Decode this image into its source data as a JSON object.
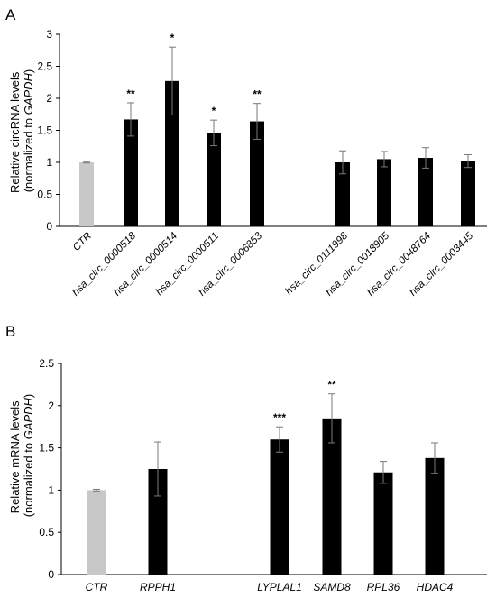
{
  "chart_data": [
    {
      "panel": "A",
      "type": "bar",
      "ylabel_line1": "Relative circRNA levels",
      "ylabel_line2_prefix": "(normalized to ",
      "ylabel_line2_italic": "GAPDH",
      "ylabel_line2_suffix": ")",
      "ylim": [
        0,
        3
      ],
      "yticks": [
        "0",
        "0.5",
        "1",
        "1.5",
        "2",
        "2.5",
        "3"
      ],
      "categories": [
        "CTR",
        "hsa_circ_0000518",
        "hsa_circ_0000514",
        "hsa_circ_0000511",
        "hsa_circ_0006853",
        "hsa_circ_0111998",
        "hsa_circ_0018905",
        "hsa_circ_0048764",
        "hsa_circ_0003445"
      ],
      "values": [
        1.0,
        1.67,
        2.27,
        1.46,
        1.64,
        1.0,
        1.05,
        1.07,
        1.02
      ],
      "errors": [
        0.01,
        0.26,
        0.53,
        0.2,
        0.28,
        0.18,
        0.12,
        0.16,
        0.1
      ],
      "significance": [
        "",
        "**",
        "*",
        "*",
        "**",
        "",
        "",
        "",
        ""
      ],
      "colors": [
        "#c8c8c8",
        "#000000",
        "#000000",
        "#000000",
        "#000000",
        "#000000",
        "#000000",
        "#000000",
        "#000000"
      ],
      "grid": false
    },
    {
      "panel": "B",
      "type": "bar",
      "ylabel_line1": "Relative mRNA levels",
      "ylabel_line2_prefix": "(normalized to ",
      "ylabel_line2_italic": "GAPDH",
      "ylabel_line2_suffix": ")",
      "ylim": [
        0,
        2.5
      ],
      "yticks": [
        "0",
        "0.5",
        "1",
        "1.5",
        "2",
        "2.5"
      ],
      "categories": [
        "CTR",
        "RPPH1",
        "LYPLAL1",
        "SAMD8",
        "RPL36",
        "HDAC4"
      ],
      "values": [
        1.0,
        1.25,
        1.6,
        1.85,
        1.21,
        1.38
      ],
      "errors": [
        0.01,
        0.32,
        0.15,
        0.29,
        0.13,
        0.18
      ],
      "significance": [
        "",
        "",
        "***",
        "**",
        "",
        ""
      ],
      "colors": [
        "#c8c8c8",
        "#000000",
        "#000000",
        "#000000",
        "#000000",
        "#000000"
      ],
      "grid": false
    }
  ]
}
